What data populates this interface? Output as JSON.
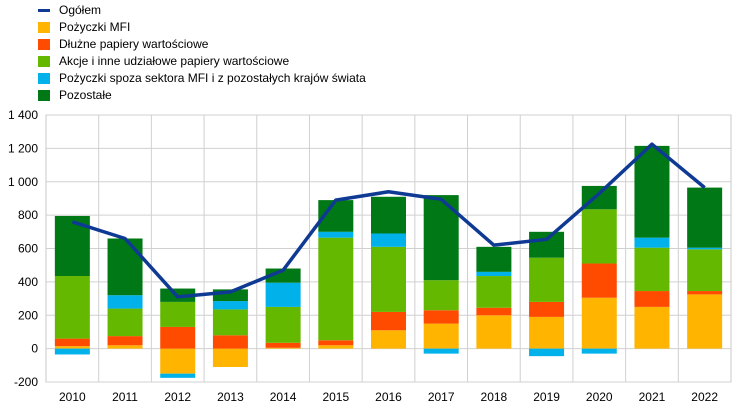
{
  "chart_data": {
    "type": "bar",
    "stacked": true,
    "categories": [
      "2010",
      "2011",
      "2012",
      "2013",
      "2014",
      "2015",
      "2016",
      "2017",
      "2018",
      "2019",
      "2020",
      "2021",
      "2022"
    ],
    "y_ticks": [
      "-200",
      "0",
      "200",
      "400",
      "600",
      "800",
      "1 000",
      "1 200",
      "1 400"
    ],
    "ylim": [
      -200,
      1400
    ],
    "grid": "horizontal",
    "legend_position": "top-left",
    "line": {
      "name": "Ogółem",
      "color": "#0f3a94",
      "values": [
        760,
        660,
        310,
        340,
        470,
        890,
        940,
        895,
        620,
        655,
        930,
        1225,
        965
      ]
    },
    "series": [
      {
        "name": "Pożyczki MFI",
        "color": "#ffb400",
        "values": [
          15,
          20,
          -150,
          -110,
          5,
          20,
          110,
          150,
          200,
          190,
          305,
          250,
          325
        ]
      },
      {
        "name": "Dłużne papiery wartościowe",
        "color": "#ff4b00",
        "values": [
          45,
          55,
          130,
          80,
          30,
          30,
          110,
          80,
          45,
          90,
          205,
          95,
          20
        ]
      },
      {
        "name": "Akcje i inne udziałowe papiery wartościowe",
        "color": "#65b800",
        "values": [
          375,
          165,
          150,
          155,
          215,
          615,
          390,
          180,
          190,
          265,
          325,
          260,
          250
        ]
      },
      {
        "name": "Pożyczki spoza sektora MFI i z pozostałych krajów świata",
        "color": "#00b1ea",
        "values": [
          -35,
          80,
          -25,
          50,
          145,
          35,
          80,
          -30,
          25,
          -45,
          -30,
          60,
          10
        ]
      },
      {
        "name": "Pozostałe",
        "color": "#007816",
        "values": [
          360,
          340,
          80,
          70,
          85,
          190,
          220,
          510,
          150,
          155,
          140,
          550,
          360
        ]
      }
    ]
  }
}
